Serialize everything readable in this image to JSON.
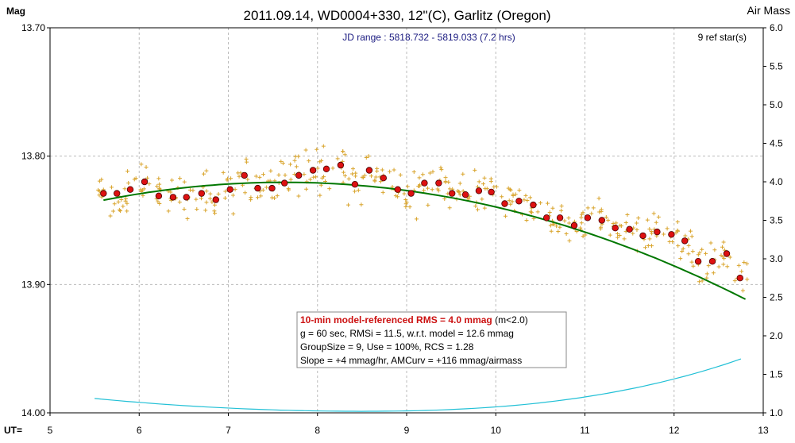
{
  "chart_data": {
    "type": "scatter",
    "title": "2011.09.14, WD0004+330, 12\"(C), Garlitz (Oregon)",
    "y_left_label": "Mag",
    "y_right_label": "Air Mass",
    "x_label": "UT=",
    "subtitle": "JD range : 5818.732 - 5819.033 (7.2 hrs)",
    "ref_stars": "9 ref star(s)",
    "xlim": [
      5,
      13
    ],
    "ylim_mag": [
      14.0,
      13.7
    ],
    "ylim_airmass": [
      1.0,
      6.0
    ],
    "x_ticks": [
      "5",
      "6",
      "7",
      "8",
      "9",
      "10",
      "11",
      "12",
      "13"
    ],
    "y_left_ticks": [
      "13.70",
      "13.80",
      "13.90",
      "14.00"
    ],
    "y_right_ticks": [
      "6.0",
      "5.5",
      "5.0",
      "4.5",
      "4.0",
      "3.5",
      "3.0",
      "2.5",
      "2.0",
      "1.5",
      "1.0"
    ],
    "grid": true,
    "info_box": {
      "line1_main": "10-min model-referenced RMS = 4.0 mmag",
      "line1_suffix": " (m<2.0)",
      "line2": "g = 60 sec, RMSi = 11.5, w.r.t. model = 12.6 mmag",
      "line3": "GroupSize = 9, Use = 100%, RCS = 1.28",
      "line4": "Slope = +4 mmag/hr, AMCurv = +116 mmag/airmass"
    },
    "colors": {
      "points": "#d9a52e",
      "group_fill": "#dd1111",
      "model": "#007700",
      "airmass": "#22c0d6",
      "grid": "#bbbbbb",
      "info_red": "#cc1111"
    },
    "series": [
      {
        "kind": "group_means",
        "x": [
          5.6,
          5.75,
          5.9,
          6.06,
          6.22,
          6.38,
          6.53,
          6.7,
          6.86,
          7.02,
          7.18,
          7.33,
          7.49,
          7.63,
          7.79,
          7.95,
          8.1,
          8.26,
          8.42,
          8.58,
          8.74,
          8.9,
          9.05,
          9.2,
          9.36,
          9.51,
          9.66,
          9.81,
          9.95,
          10.1,
          10.26,
          10.42,
          10.57,
          10.72,
          10.88,
          11.03,
          11.19,
          11.34,
          11.5,
          11.65,
          11.81,
          11.97,
          12.12,
          12.27,
          12.43,
          12.59,
          12.74
        ],
        "y": [
          13.829,
          13.829,
          13.826,
          13.82,
          13.831,
          13.832,
          13.832,
          13.829,
          13.834,
          13.826,
          13.815,
          13.825,
          13.825,
          13.821,
          13.815,
          13.811,
          13.81,
          13.807,
          13.822,
          13.811,
          13.817,
          13.826,
          13.829,
          13.821,
          13.821,
          13.829,
          13.83,
          13.827,
          13.828,
          13.837,
          13.835,
          13.838,
          13.848,
          13.848,
          13.854,
          13.848,
          13.85,
          13.856,
          13.857,
          13.862,
          13.859,
          13.861,
          13.866,
          13.882,
          13.882,
          13.876,
          13.895
        ]
      },
      {
        "kind": "model",
        "x": [
          5.6,
          12.8
        ],
        "a": 13.8205,
        "b": 0.0012,
        "c": 0.0034,
        "x0": 7.8
      },
      {
        "kind": "airmass",
        "x": [
          5.5,
          12.75
        ],
        "y_min": 1.02,
        "x_min": 8.5,
        "curvature": 0.0185
      },
      {
        "kind": "raw",
        "seed": 20110914,
        "per_group": 9,
        "scatter_mag": 0.0115
      }
    ]
  }
}
